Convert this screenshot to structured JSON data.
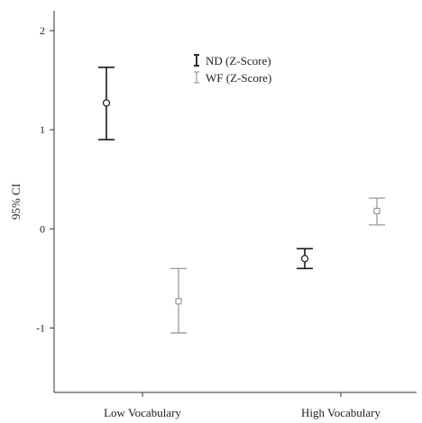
{
  "chart_data": {
    "type": "errorbar",
    "categories": [
      "Low Vocabulary",
      "High Vocabulary"
    ],
    "ylabel": "95% CI",
    "xlabel": "",
    "ylim": [
      -1.65,
      2.2
    ],
    "yticks": [
      -1,
      0,
      1,
      2
    ],
    "grid": false,
    "legend_position": "top-center",
    "series": [
      {
        "name": "ND (Z-Score)",
        "color": "#1a1a1a",
        "marker": "circle",
        "points": [
          {
            "category": "Low Vocabulary",
            "mean": 1.27,
            "lower": 0.9,
            "upper": 1.63
          },
          {
            "category": "High Vocabulary",
            "mean": -0.3,
            "lower": -0.4,
            "upper": -0.2
          }
        ]
      },
      {
        "name": "WF (Z-Score)",
        "color": "#9a9a9a",
        "marker": "square",
        "points": [
          {
            "category": "Low Vocabulary",
            "mean": -0.73,
            "lower": -1.05,
            "upper": -0.4
          },
          {
            "category": "High Vocabulary",
            "mean": 0.18,
            "lower": 0.04,
            "upper": 0.31
          }
        ]
      }
    ]
  }
}
